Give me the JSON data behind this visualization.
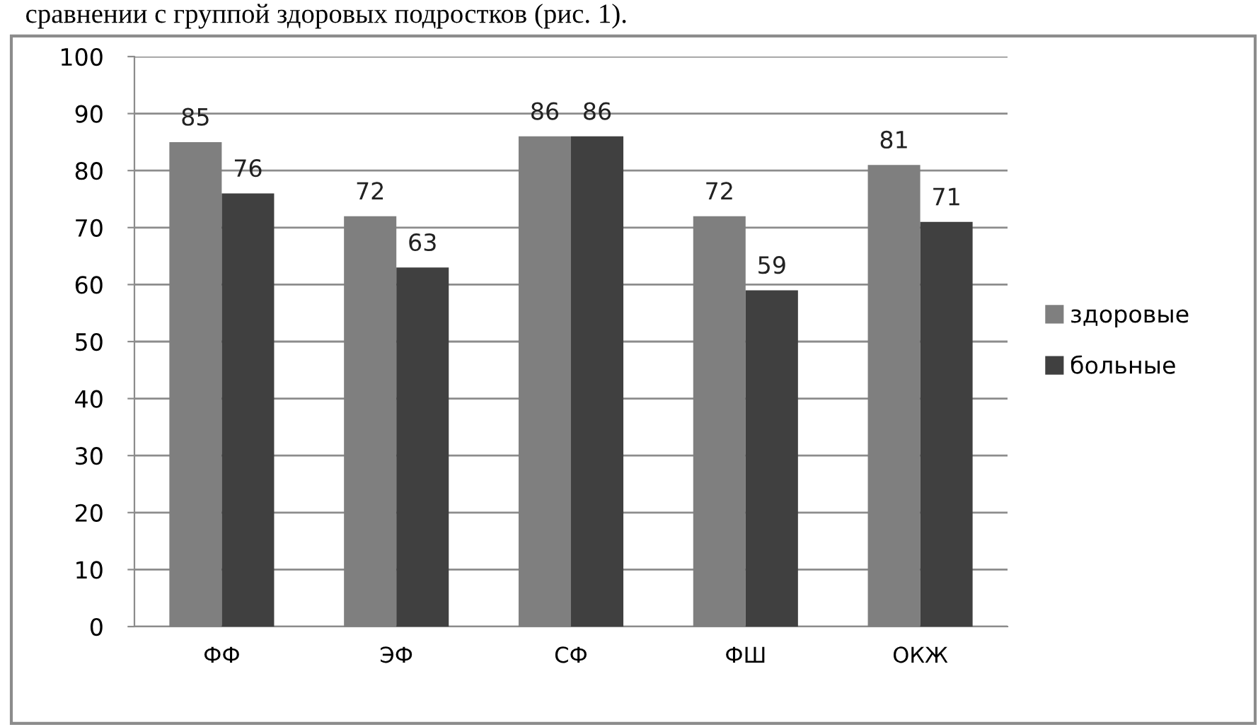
{
  "chart_data": {
    "type": "bar",
    "annotations": [
      "сравнении с группой здоровых подростков (рис. 1)."
    ],
    "categories": [
      "ФФ",
      "ЭФ",
      "СФ",
      "ФШ",
      "ОКЖ"
    ],
    "series": [
      {
        "name": "здоровые",
        "color": "#7f7f7f",
        "values": [
          85,
          72,
          86,
          72,
          81
        ]
      },
      {
        "name": "больные",
        "color": "#404040",
        "values": [
          76,
          63,
          86,
          59,
          71
        ]
      }
    ],
    "ylim": [
      0,
      100
    ],
    "yticks": [
      0,
      10,
      20,
      30,
      40,
      50,
      60,
      70,
      80,
      90,
      100
    ],
    "grid": "y",
    "legend": "right",
    "data_labels": true
  }
}
